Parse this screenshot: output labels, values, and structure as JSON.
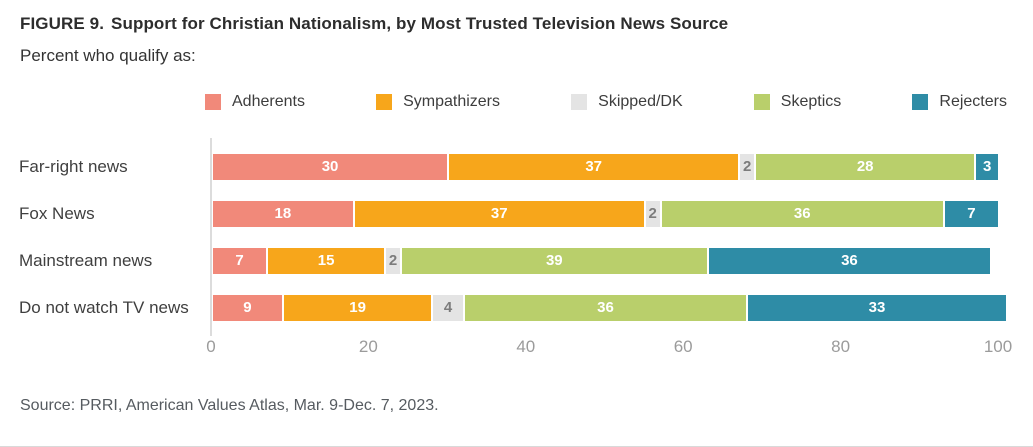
{
  "header": {
    "title_prefix": "FIGURE 9.",
    "title": "Support for Christian Nationalism, by Most Trusted Television News Source",
    "subtitle": "Percent who qualify as:"
  },
  "source": "Source: PRRI, American Values Atlas, Mar. 9-Dec. 7, 2023.",
  "colors": {
    "axis_line": "#dcdcdc",
    "tick_label": "#9b9b9b",
    "title_text": "#2d2d2d",
    "category_label": "#3f3f3f"
  },
  "chart_data": {
    "type": "bar",
    "stacked": true,
    "orientation": "horizontal",
    "title": "FIGURE 9. Support for Christian Nationalism, by Most Trusted Television News Source",
    "subtitle": "Percent who qualify as:",
    "categories": [
      "Far-right news",
      "Fox News",
      "Mainstream news",
      "Do not watch TV news"
    ],
    "series": [
      {
        "name": "Adherents",
        "color": "#F1897A",
        "label_color": "#ffffff",
        "values": [
          30,
          18,
          7,
          9
        ]
      },
      {
        "name": "Sympathizers",
        "color": "#F7A61B",
        "label_color": "#ffffff",
        "values": [
          37,
          37,
          15,
          19
        ]
      },
      {
        "name": "Skipped/DK",
        "color": "#E4E4E4",
        "label_color": "#7c7c7c",
        "values": [
          2,
          2,
          2,
          4
        ]
      },
      {
        "name": "Skeptics",
        "color": "#B9CF6B",
        "label_color": "#ffffff",
        "values": [
          28,
          36,
          39,
          36
        ]
      },
      {
        "name": "Rejecters",
        "color": "#2E8CA6",
        "label_color": "#ffffff",
        "values": [
          3,
          7,
          36,
          33
        ]
      }
    ],
    "x_ticks": [
      0,
      20,
      40,
      60,
      80,
      100
    ],
    "xlim": [
      0,
      100
    ],
    "legend_position": "top",
    "grid": false,
    "bar_labels": true
  }
}
